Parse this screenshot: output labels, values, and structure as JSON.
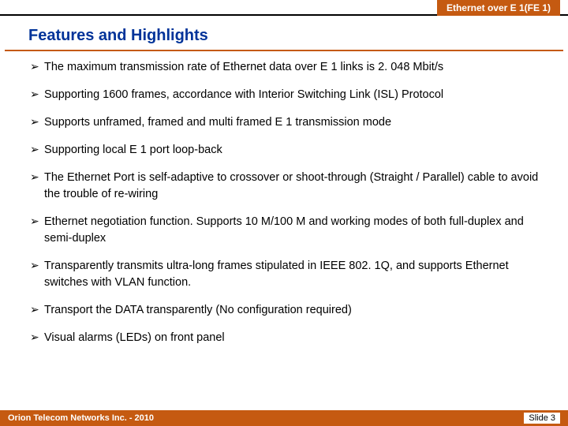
{
  "header": {
    "tab": "Ethernet over E 1(FE 1)"
  },
  "heading": "Features and Highlights",
  "bullets": [
    "The maximum transmission rate of Ethernet data over E 1 links is 2. 048 Mbit/s",
    "Supporting 1600 frames, accordance with Interior Switching Link (ISL) Protocol",
    "Supports unframed, framed and multi framed E 1 transmission mode",
    "Supporting local E 1 port loop-back",
    "The Ethernet Port is self-adaptive to crossover or shoot-through (Straight / Parallel) cable to avoid the trouble of re-wiring",
    "Ethernet negotiation function. Supports 10 M/100 M and working modes of both full-duplex and semi-duplex",
    "Transparently transmits ultra-long frames stipulated in IEEE 802. 1Q, and supports Ethernet switches with VLAN function.",
    "Transport the DATA transparently (No configuration required)",
    "Visual alarms (LEDs) on front panel"
  ],
  "footer": {
    "company": "Orion Telecom Networks Inc. - 2010",
    "slide": "Slide 3"
  },
  "colors": {
    "accent": "#c55a11",
    "heading": "#003399",
    "text": "#000000",
    "bg": "#ffffff"
  }
}
